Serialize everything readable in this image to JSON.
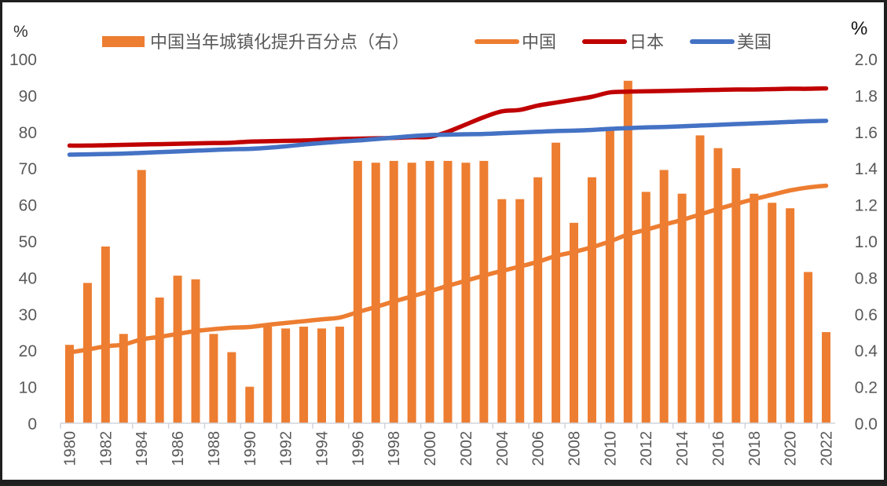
{
  "chart_data": {
    "type": "bar+line",
    "title": "",
    "left_axis": {
      "unit_label": "%",
      "ylim": [
        0,
        100
      ],
      "ticks": [
        0,
        10,
        20,
        30,
        40,
        50,
        60,
        70,
        80,
        90,
        100
      ]
    },
    "right_axis": {
      "unit_label": "%",
      "ylim": [
        0.0,
        2.0
      ],
      "ticks": [
        "0.0",
        "0.2",
        "0.4",
        "0.6",
        "0.8",
        "1.0",
        "1.2",
        "1.4",
        "1.6",
        "1.8",
        "2.0"
      ]
    },
    "x": [
      1980,
      1981,
      1982,
      1983,
      1984,
      1985,
      1986,
      1987,
      1988,
      1989,
      1990,
      1991,
      1992,
      1993,
      1994,
      1995,
      1996,
      1997,
      1998,
      1999,
      2000,
      2001,
      2002,
      2003,
      2004,
      2005,
      2006,
      2007,
      2008,
      2009,
      2010,
      2011,
      2012,
      2013,
      2014,
      2015,
      2016,
      2017,
      2018,
      2019,
      2020,
      2021,
      2022
    ],
    "x_tick_labels": [
      "1980",
      "1982",
      "1984",
      "1986",
      "1988",
      "1990",
      "1992",
      "1994",
      "1996",
      "1998",
      "2000",
      "2002",
      "2004",
      "2006",
      "2008",
      "2010",
      "2012",
      "2014",
      "2016",
      "2018",
      "2020",
      "2022"
    ],
    "legend_placement": "top",
    "grid": false,
    "series": [
      {
        "name": "中国当年城镇化提升百分点（右）",
        "type": "bar",
        "axis": "right",
        "color": "#ED7D31",
        "values": [
          0.43,
          0.77,
          0.97,
          0.49,
          1.39,
          0.69,
          0.81,
          0.79,
          0.49,
          0.39,
          0.2,
          0.53,
          0.52,
          0.53,
          0.52,
          0.53,
          1.44,
          1.43,
          1.44,
          1.43,
          1.44,
          1.44,
          1.43,
          1.44,
          1.23,
          1.23,
          1.35,
          1.54,
          1.1,
          1.35,
          1.62,
          1.88,
          1.27,
          1.39,
          1.26,
          1.58,
          1.51,
          1.4,
          1.26,
          1.21,
          1.18,
          0.83,
          0.5
        ]
      },
      {
        "name": "中国",
        "type": "line",
        "axis": "left",
        "color": "#ED7D31",
        "values": [
          19.4,
          20.2,
          21.1,
          21.6,
          23.0,
          23.7,
          24.5,
          25.3,
          25.8,
          26.2,
          26.4,
          27.0,
          27.5,
          28.0,
          28.5,
          29.0,
          30.5,
          31.9,
          33.4,
          34.8,
          36.2,
          37.7,
          39.1,
          40.5,
          41.8,
          43.0,
          44.3,
          45.9,
          47.0,
          48.3,
          49.9,
          51.8,
          53.1,
          54.5,
          55.8,
          57.3,
          58.8,
          60.2,
          61.5,
          62.7,
          63.9,
          64.7,
          65.2
        ]
      },
      {
        "name": "日本",
        "type": "line",
        "axis": "left",
        "color": "#C00000",
        "values": [
          76.2,
          76.2,
          76.3,
          76.4,
          76.5,
          76.6,
          76.7,
          76.8,
          76.9,
          77.0,
          77.3,
          77.4,
          77.5,
          77.6,
          77.8,
          78.0,
          78.1,
          78.2,
          78.3,
          78.5,
          78.6,
          80.0,
          82.0,
          84.0,
          85.6,
          86.0,
          87.2,
          88.0,
          88.8,
          89.6,
          90.8,
          91.0,
          91.1,
          91.2,
          91.3,
          91.4,
          91.5,
          91.6,
          91.6,
          91.7,
          91.8,
          91.8,
          91.9
        ]
      },
      {
        "name": "美国",
        "type": "line",
        "axis": "left",
        "color": "#4472C4",
        "values": [
          73.7,
          73.8,
          73.9,
          74.0,
          74.2,
          74.4,
          74.6,
          74.8,
          75.0,
          75.2,
          75.3,
          75.6,
          76.0,
          76.5,
          76.9,
          77.3,
          77.6,
          78.0,
          78.4,
          78.8,
          79.1,
          79.2,
          79.3,
          79.4,
          79.6,
          79.8,
          80.0,
          80.2,
          80.3,
          80.5,
          80.8,
          81.0,
          81.2,
          81.3,
          81.5,
          81.7,
          81.9,
          82.1,
          82.3,
          82.5,
          82.7,
          82.9,
          83.0
        ]
      }
    ]
  }
}
